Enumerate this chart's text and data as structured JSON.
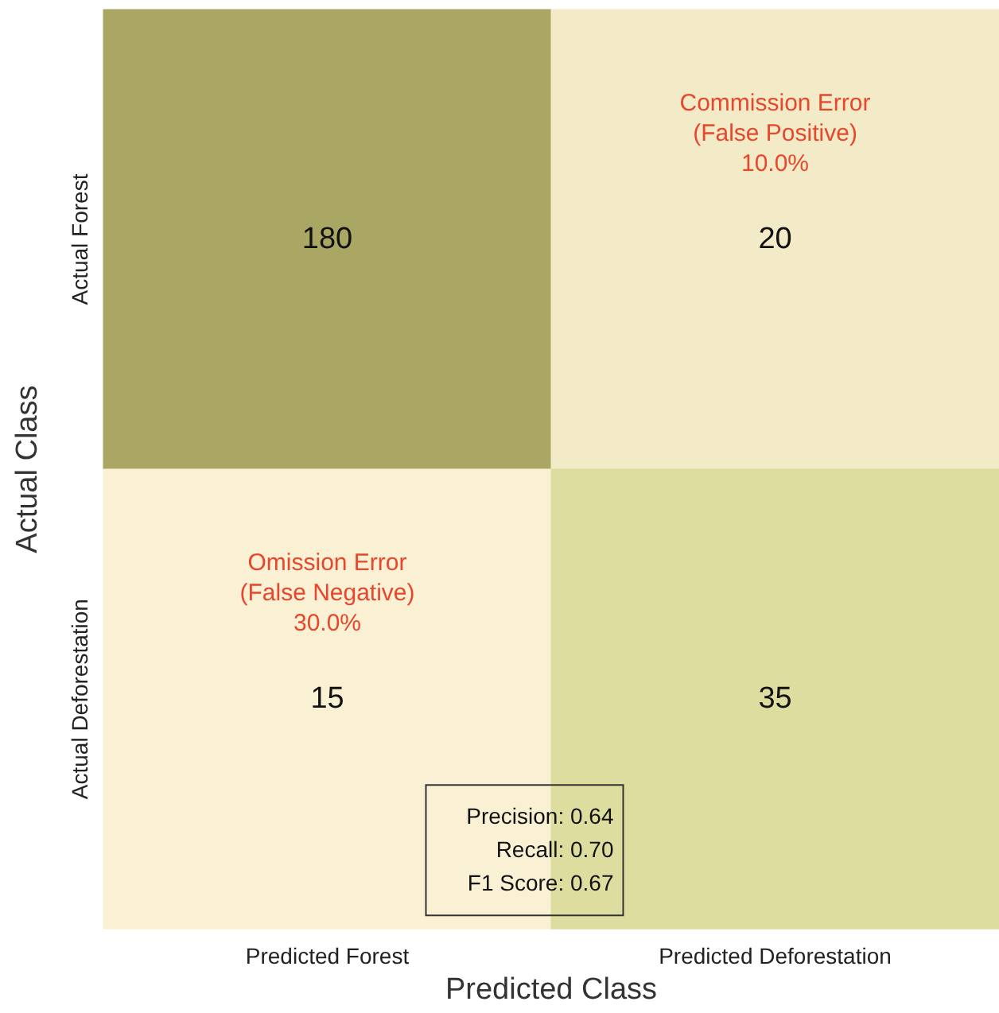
{
  "chart_data": {
    "type": "heatmap",
    "xlabel": "Predicted Class",
    "ylabel": "Actual Class",
    "categories": [
      "Predicted Forest",
      "Predicted Deforestation"
    ],
    "y_categories": [
      "Actual Forest",
      "Actual Deforestation"
    ],
    "cells": [
      [
        180,
        20
      ],
      [
        15,
        35
      ]
    ],
    "data_labels": true,
    "annotations": [
      "Commission Error\n(False Positive)\n10.0%",
      "Omission Error\n(False Negative)\n30.0%",
      "Precision: 0.64\nRecall: 0.70\nF1 Score: 0.67"
    ]
  }
}
